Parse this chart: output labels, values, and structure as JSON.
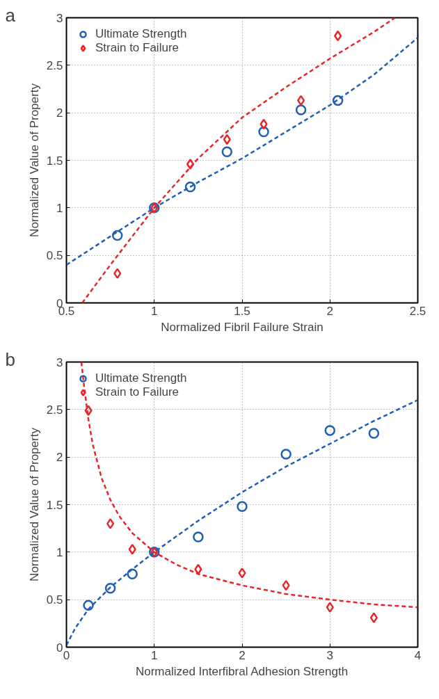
{
  "chart_data": [
    {
      "type": "scatter",
      "annotations": [
        "a"
      ],
      "xlabel": "Normalized Fibril Failure Strain",
      "ylabel": "Normalized Value of Property",
      "xlim": [
        0.5,
        2.5
      ],
      "ylim": [
        0,
        3
      ],
      "xticks": [
        0.5,
        1,
        1.5,
        2,
        2.5
      ],
      "yticks": [
        0,
        0.5,
        1,
        1.5,
        2,
        2.5,
        3
      ],
      "grid": true,
      "legend": "top left",
      "series": [
        {
          "name": "Ultimate Strength",
          "marker": "circle",
          "color": "#1f5fb4",
          "x": [
            0.79,
            1,
            1.205,
            1.414,
            1.623,
            1.835,
            2.045
          ],
          "values": [
            0.71,
            1.0,
            1.22,
            1.59,
            1.8,
            2.03,
            2.13
          ]
        },
        {
          "name": "Strain to Failure",
          "marker": "diamond",
          "color": "#e8262a",
          "x": [
            0.79,
            1,
            1.205,
            1.414,
            1.623,
            1.835,
            2.045
          ],
          "values": [
            0.31,
            1.0,
            1.46,
            1.72,
            1.88,
            2.13,
            2.81
          ]
        },
        {
          "type": "line",
          "line_style": "dashed",
          "color": "#1f5fb4",
          "x": [
            0.5,
            0.75,
            1,
            1.25,
            1.5,
            1.75,
            2,
            2.25,
            2.5
          ],
          "values": [
            0.4,
            0.7,
            1.0,
            1.27,
            1.52,
            1.8,
            2.08,
            2.4,
            2.79
          ]
        },
        {
          "type": "line",
          "line_style": "dashed",
          "color": "#e8262a",
          "x": [
            0.59,
            0.75,
            1,
            1.25,
            1.5,
            1.75,
            2,
            2.25,
            2.37
          ],
          "values": [
            0,
            0.4,
            1.0,
            1.52,
            1.95,
            2.27,
            2.57,
            2.85,
            3.0
          ]
        }
      ]
    },
    {
      "type": "scatter",
      "annotations": [
        "b"
      ],
      "xlabel": "Normalized Interfibral Adhesion Strength",
      "ylabel": "Normalized Value of Property",
      "xlim": [
        0,
        4
      ],
      "ylim": [
        0,
        3
      ],
      "xticks": [
        0,
        1,
        2,
        3,
        4
      ],
      "yticks": [
        0,
        0.5,
        1,
        1.5,
        2,
        2.5,
        3
      ],
      "grid": true,
      "legend": "top left",
      "series": [
        {
          "name": "Ultimate Strength",
          "marker": "circle",
          "color": "#1f5fb4",
          "x": [
            0.25,
            0.5,
            0.75,
            1,
            1.5,
            2,
            2.5,
            3,
            3.5
          ],
          "values": [
            0.44,
            0.62,
            0.77,
            1.0,
            1.16,
            1.48,
            2.03,
            2.28,
            2.25
          ]
        },
        {
          "name": "Strain to Failure",
          "marker": "diamond",
          "color": "#e8262a",
          "x": [
            0.25,
            0.5,
            0.75,
            1,
            1.5,
            2,
            2.5,
            3,
            3.5
          ],
          "values": [
            2.49,
            1.3,
            1.03,
            1.0,
            0.82,
            0.78,
            0.65,
            0.42,
            0.31
          ]
        },
        {
          "type": "line",
          "line_style": "dashed",
          "color": "#1f5fb4",
          "x": [
            0,
            0.1,
            0.25,
            0.5,
            0.75,
            1,
            1.5,
            2,
            2.5,
            3,
            3.5,
            4
          ],
          "values": [
            0.02,
            0.2,
            0.4,
            0.63,
            0.82,
            1.0,
            1.33,
            1.63,
            1.9,
            2.14,
            2.38,
            2.6
          ]
        },
        {
          "type": "line",
          "line_style": "dashed",
          "color": "#e8262a",
          "x": [
            0.17,
            0.2,
            0.25,
            0.3,
            0.4,
            0.5,
            0.6,
            0.75,
            1,
            1.25,
            1.5,
            2,
            2.5,
            3,
            3.5,
            4
          ],
          "values": [
            3.0,
            2.75,
            2.4,
            2.13,
            1.78,
            1.55,
            1.38,
            1.2,
            1.0,
            0.87,
            0.77,
            0.65,
            0.56,
            0.5,
            0.45,
            0.42
          ]
        }
      ]
    }
  ]
}
